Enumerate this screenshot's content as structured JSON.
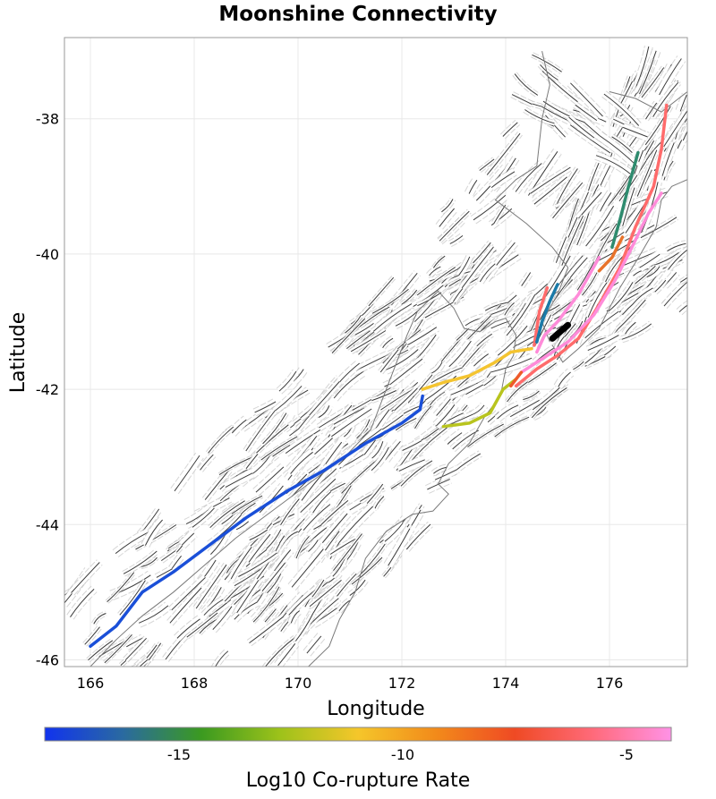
{
  "title": "Moonshine Connectivity",
  "x_axis": {
    "label": "Longitude",
    "range": [
      165.5,
      177.5
    ],
    "ticks": [
      166,
      168,
      170,
      172,
      174,
      176
    ]
  },
  "y_axis": {
    "label": "Latitude",
    "range": [
      -46.1,
      -36.8
    ],
    "ticks": [
      -38,
      -40,
      -42,
      -44,
      -46
    ]
  },
  "grid": true,
  "colorbar": {
    "label": "Log10 Co-rupture Rate",
    "range": [
      -18,
      -4
    ],
    "ticks": [
      -15,
      -10,
      -5
    ],
    "colors": [
      "#1133ee",
      "#2a6aa0",
      "#3b9a20",
      "#9dc21a",
      "#f5c62a",
      "#f28a1a",
      "#ef4a24",
      "#ff6a7a",
      "#ff92e6"
    ]
  },
  "colors": {
    "fault_outline": "#b5b5b5",
    "fault_trace": "#3a3a3a",
    "coastline": "#7a7a7a",
    "grid": "#e8e8e8",
    "frame": "#9a9a9a",
    "source_fault": "#000000"
  },
  "connected_ruptures": [
    {
      "color": "#1a4fd8",
      "path": [
        [
          166.0,
          -45.8
        ],
        [
          166.5,
          -45.5
        ],
        [
          167.0,
          -45.0
        ],
        [
          167.6,
          -44.7
        ],
        [
          168.3,
          -44.3
        ],
        [
          169.0,
          -43.9
        ],
        [
          169.8,
          -43.5
        ],
        [
          170.5,
          -43.2
        ],
        [
          171.3,
          -42.8
        ],
        [
          172.0,
          -42.5
        ],
        [
          172.35,
          -42.3
        ],
        [
          172.4,
          -42.1
        ]
      ]
    },
    {
      "color": "#f4c430",
      "path": [
        [
          172.4,
          -42.0
        ],
        [
          172.8,
          -41.9
        ],
        [
          173.3,
          -41.8
        ],
        [
          173.8,
          -41.6
        ],
        [
          174.1,
          -41.45
        ],
        [
          174.5,
          -41.4
        ]
      ]
    },
    {
      "color": "#b8c41e",
      "path": [
        [
          172.8,
          -42.55
        ],
        [
          173.3,
          -42.5
        ],
        [
          173.7,
          -42.35
        ],
        [
          173.95,
          -42.0
        ],
        [
          174.2,
          -41.85
        ]
      ]
    },
    {
      "color": "#ff6b6b",
      "path": [
        [
          174.2,
          -41.95
        ],
        [
          174.6,
          -41.7
        ],
        [
          175.0,
          -41.5
        ],
        [
          175.4,
          -41.25
        ],
        [
          175.8,
          -40.75
        ],
        [
          176.2,
          -40.2
        ],
        [
          176.5,
          -39.6
        ],
        [
          176.85,
          -39.0
        ],
        [
          177.0,
          -38.45
        ],
        [
          177.1,
          -37.8
        ]
      ]
    },
    {
      "color": "#ff6b6b",
      "path": [
        [
          174.55,
          -41.35
        ],
        [
          174.65,
          -40.85
        ],
        [
          174.8,
          -40.5
        ]
      ]
    },
    {
      "color": "#ff8bd9",
      "path": [
        [
          174.3,
          -41.75
        ],
        [
          174.7,
          -41.55
        ],
        [
          175.2,
          -41.3
        ],
        [
          175.7,
          -40.9
        ],
        [
          176.1,
          -40.4
        ],
        [
          176.4,
          -39.95
        ],
        [
          176.75,
          -39.4
        ],
        [
          177.0,
          -39.1
        ]
      ]
    },
    {
      "color": "#ff8bd9",
      "path": [
        [
          174.6,
          -41.45
        ],
        [
          174.75,
          -41.2
        ],
        [
          175.0,
          -41.0
        ],
        [
          175.4,
          -40.6
        ],
        [
          175.8,
          -40.05
        ]
      ]
    },
    {
      "color": "#1a7aa8",
      "path": [
        [
          174.6,
          -41.3
        ],
        [
          174.7,
          -41.0
        ],
        [
          174.85,
          -40.7
        ],
        [
          175.0,
          -40.45
        ]
      ]
    },
    {
      "color": "#2e8b6e",
      "path": [
        [
          176.05,
          -39.9
        ],
        [
          176.2,
          -39.5
        ],
        [
          176.35,
          -39.05
        ],
        [
          176.55,
          -38.5
        ]
      ]
    },
    {
      "color": "#e8732a",
      "path": [
        [
          175.8,
          -40.25
        ],
        [
          176.05,
          -40.05
        ],
        [
          176.25,
          -39.75
        ]
      ]
    },
    {
      "color": "#ee5a2a",
      "path": [
        [
          174.1,
          -41.95
        ],
        [
          174.3,
          -41.75
        ]
      ]
    }
  ],
  "source_fault": [
    [
      174.9,
      -41.25
    ],
    [
      175.05,
      -41.15
    ],
    [
      175.2,
      -41.05
    ]
  ],
  "coastline": [
    [
      [
        166.0,
        -46.1
      ],
      [
        166.5,
        -45.7
      ],
      [
        167.0,
        -45.35
      ],
      [
        167.6,
        -45.0
      ],
      [
        168.2,
        -44.6
      ],
      [
        168.8,
        -44.2
      ],
      [
        169.5,
        -43.8
      ],
      [
        170.2,
        -43.4
      ],
      [
        170.9,
        -43.0
      ],
      [
        171.4,
        -42.6
      ],
      [
        171.7,
        -42.0
      ],
      [
        171.9,
        -41.6
      ],
      [
        172.1,
        -41.2
      ],
      [
        172.3,
        -40.85
      ],
      [
        172.7,
        -40.55
      ],
      [
        173.0,
        -40.8
      ],
      [
        173.2,
        -41.1
      ],
      [
        173.5,
        -41.15
      ],
      [
        173.8,
        -41.0
      ],
      [
        174.0,
        -40.95
      ],
      [
        174.2,
        -41.2
      ],
      [
        174.15,
        -41.5
      ],
      [
        174.0,
        -41.7
      ],
      [
        173.9,
        -42.1
      ],
      [
        173.6,
        -42.4
      ],
      [
        173.3,
        -42.8
      ],
      [
        172.9,
        -43.1
      ],
      [
        172.7,
        -43.4
      ],
      [
        172.9,
        -43.55
      ],
      [
        172.6,
        -43.8
      ],
      [
        172.2,
        -43.85
      ],
      [
        171.7,
        -44.1
      ],
      [
        171.3,
        -44.5
      ],
      [
        171.1,
        -45.0
      ],
      [
        170.8,
        -45.4
      ],
      [
        170.6,
        -45.8
      ],
      [
        170.2,
        -46.1
      ]
    ],
    [
      [
        174.9,
        -41.35
      ],
      [
        175.1,
        -41.6
      ],
      [
        175.4,
        -41.4
      ],
      [
        175.8,
        -41.1
      ],
      [
        176.2,
        -40.5
      ],
      [
        176.6,
        -40.0
      ],
      [
        176.9,
        -39.6
      ],
      [
        177.0,
        -39.2
      ],
      [
        177.2,
        -39.0
      ],
      [
        177.5,
        -38.9
      ]
    ],
    [
      [
        174.85,
        -41.3
      ],
      [
        174.7,
        -41.0
      ],
      [
        175.0,
        -40.6
      ],
      [
        175.2,
        -40.2
      ],
      [
        174.9,
        -39.9
      ],
      [
        174.4,
        -39.55
      ],
      [
        173.8,
        -39.2
      ],
      [
        174.2,
        -38.9
      ],
      [
        174.6,
        -38.7
      ],
      [
        174.7,
        -38.0
      ],
      [
        174.85,
        -37.5
      ],
      [
        174.7,
        -37.0
      ]
    ],
    [
      [
        176.0,
        -37.6
      ],
      [
        176.5,
        -37.7
      ],
      [
        177.0,
        -37.9
      ],
      [
        177.5,
        -37.6
      ]
    ]
  ]
}
